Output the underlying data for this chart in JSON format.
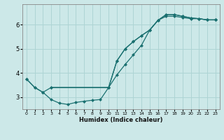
{
  "xlabel": "Humidex (Indice chaleur)",
  "background_color": "#cce8e8",
  "grid_color": "#aed4d4",
  "line_color": "#1a7070",
  "xlim": [
    -0.5,
    23.5
  ],
  "ylim": [
    2.5,
    6.85
  ],
  "xticks": [
    0,
    1,
    2,
    3,
    4,
    5,
    6,
    7,
    8,
    9,
    10,
    11,
    12,
    13,
    14,
    15,
    16,
    17,
    18,
    19,
    20,
    21,
    22,
    23
  ],
  "yticks": [
    3,
    4,
    5,
    6
  ],
  "line1_x": [
    0,
    1,
    2,
    3,
    4,
    5,
    6,
    7,
    8,
    9,
    10,
    11,
    12,
    13,
    14,
    15,
    16,
    17,
    18,
    19,
    20,
    21,
    22,
    23
  ],
  "line1_y": [
    3.75,
    3.4,
    3.2,
    2.9,
    2.75,
    2.7,
    2.78,
    2.83,
    2.87,
    2.9,
    3.4,
    3.92,
    4.35,
    4.75,
    5.15,
    5.78,
    6.18,
    6.35,
    6.35,
    6.3,
    6.25,
    6.25,
    6.2,
    6.2
  ],
  "line2_x": [
    0,
    1,
    2,
    3,
    10,
    11,
    12,
    13,
    14,
    15,
    16,
    17,
    18,
    19,
    20,
    21,
    22,
    23
  ],
  "line2_y": [
    3.75,
    3.4,
    3.2,
    3.4,
    3.4,
    4.5,
    5.0,
    5.3,
    5.55,
    5.78,
    6.18,
    6.42,
    6.42,
    6.35,
    6.28,
    6.25,
    6.2,
    6.2
  ],
  "line3_x": [
    3,
    10,
    11,
    12,
    13,
    14,
    15,
    16,
    17,
    18,
    19,
    20,
    21,
    22,
    23
  ],
  "line3_y": [
    3.4,
    3.4,
    4.5,
    5.0,
    5.3,
    5.55,
    5.78,
    6.18,
    6.42,
    6.42,
    6.35,
    6.28,
    6.25,
    6.2,
    6.2
  ]
}
